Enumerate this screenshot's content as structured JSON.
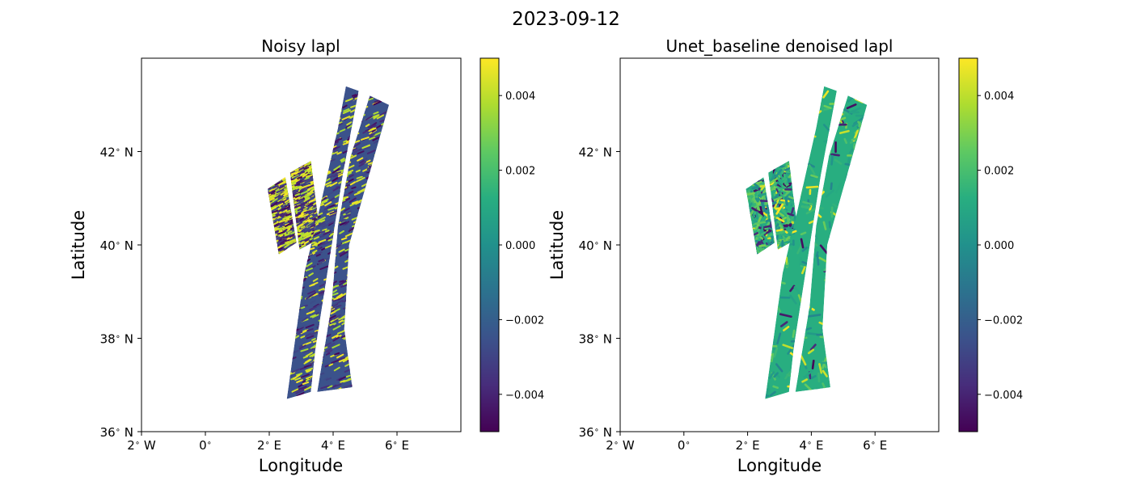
{
  "figure": {
    "suptitle": "2023-09-12"
  },
  "chart_data": [
    {
      "type": "heatmap",
      "title": "Noisy lapl",
      "xlabel": "Longitude",
      "ylabel": "Latitude",
      "xlim": [
        -2,
        8
      ],
      "ylim": [
        36,
        44
      ],
      "xticks": [
        {
          "value": -2,
          "label": "2$^\\circ$ W"
        },
        {
          "value": 0,
          "label": "0$^\\circ$"
        },
        {
          "value": 2,
          "label": "2$^\\circ$ E"
        },
        {
          "value": 4,
          "label": "4$^\\circ$ E"
        },
        {
          "value": 6,
          "label": "6$^\\circ$ E"
        }
      ],
      "yticks": [
        {
          "value": 36,
          "label": "36$^\\circ$ N"
        },
        {
          "value": 38,
          "label": "38$^\\circ$ N"
        },
        {
          "value": 40,
          "label": "40$^\\circ$ N"
        },
        {
          "value": 42,
          "label": "42$^\\circ$ N"
        }
      ],
      "colorbar": {
        "colormap": "viridis",
        "vmin": -0.005,
        "vmax": 0.005,
        "ticks": [
          {
            "value": 0.004,
            "label": "0.004"
          },
          {
            "value": 0.002,
            "label": "0.002"
          },
          {
            "value": 0.0,
            "label": "0.000"
          },
          {
            "value": -0.002,
            "label": "−0.002"
          },
          {
            "value": -0.004,
            "label": "−0.004"
          }
        ]
      },
      "swaths": [
        {
          "name": "",
          "corners": [
            [
              2.3,
              39.8
            ],
            [
              1.95,
              41.2
            ],
            [
              2.5,
              41.45
            ],
            [
              2.85,
              40.05
            ]
          ]
        },
        {
          "name": "",
          "corners": [
            [
              2.95,
              39.9
            ],
            [
              2.65,
              41.55
            ],
            [
              3.3,
              41.8
            ],
            [
              3.6,
              40.15
            ]
          ]
        },
        {
          "name": "",
          "corners": [
            [
              2.55,
              36.7
            ],
            [
              3.1,
              39.4
            ],
            [
              3.55,
              40.7
            ],
            [
              4.15,
              42.5
            ],
            [
              4.4,
              43.4
            ],
            [
              4.8,
              43.3
            ],
            [
              4.3,
              41.5
            ],
            [
              3.45,
              37.8
            ],
            [
              3.3,
              36.85
            ]
          ]
        },
        {
          "name": "",
          "corners": [
            [
              3.5,
              36.85
            ],
            [
              3.95,
              38.7
            ],
            [
              4.15,
              40.4
            ],
            [
              4.55,
              41.9
            ],
            [
              5.15,
              43.2
            ],
            [
              5.75,
              43.0
            ],
            [
              4.5,
              40.0
            ],
            [
              4.35,
              38.2
            ],
            [
              4.6,
              36.95
            ]
          ]
        }
      ],
      "noise_level": "high"
    },
    {
      "type": "heatmap",
      "title": "Unet_baseline denoised lapl",
      "xlabel": "Longitude",
      "ylabel": "Latitude",
      "xlim": [
        -2,
        8
      ],
      "ylim": [
        36,
        44
      ],
      "xticks": [
        {
          "value": -2,
          "label": "2$^\\circ$ W"
        },
        {
          "value": 0,
          "label": "0$^\\circ$"
        },
        {
          "value": 2,
          "label": "2$^\\circ$ E"
        },
        {
          "value": 4,
          "label": "4$^\\circ$ E"
        },
        {
          "value": 6,
          "label": "6$^\\circ$ E"
        }
      ],
      "yticks": [
        {
          "value": 36,
          "label": "36$^\\circ$ N"
        },
        {
          "value": 38,
          "label": "38$^\\circ$ N"
        },
        {
          "value": 40,
          "label": "40$^\\circ$ N"
        },
        {
          "value": 42,
          "label": "42$^\\circ$ N"
        }
      ],
      "colorbar": {
        "colormap": "viridis",
        "vmin": -0.005,
        "vmax": 0.005,
        "ticks": [
          {
            "value": 0.004,
            "label": "0.004"
          },
          {
            "value": 0.002,
            "label": "0.002"
          },
          {
            "value": 0.0,
            "label": "0.000"
          },
          {
            "value": -0.002,
            "label": "−0.002"
          },
          {
            "value": -0.004,
            "label": "−0.004"
          }
        ]
      },
      "swaths": [
        {
          "name": "",
          "corners": [
            [
              2.3,
              39.8
            ],
            [
              1.95,
              41.2
            ],
            [
              2.5,
              41.45
            ],
            [
              2.85,
              40.05
            ]
          ]
        },
        {
          "name": "",
          "corners": [
            [
              2.95,
              39.9
            ],
            [
              2.65,
              41.55
            ],
            [
              3.3,
              41.8
            ],
            [
              3.6,
              40.15
            ]
          ]
        },
        {
          "name": "",
          "corners": [
            [
              2.55,
              36.7
            ],
            [
              3.1,
              39.4
            ],
            [
              3.55,
              40.7
            ],
            [
              4.15,
              42.5
            ],
            [
              4.4,
              43.4
            ],
            [
              4.8,
              43.3
            ],
            [
              4.3,
              41.5
            ],
            [
              3.45,
              37.8
            ],
            [
              3.3,
              36.85
            ]
          ]
        },
        {
          "name": "",
          "corners": [
            [
              3.5,
              36.85
            ],
            [
              3.95,
              38.7
            ],
            [
              4.15,
              40.4
            ],
            [
              4.55,
              41.9
            ],
            [
              5.15,
              43.2
            ],
            [
              5.75,
              43.0
            ],
            [
              4.5,
              40.0
            ],
            [
              4.35,
              38.2
            ],
            [
              4.6,
              36.95
            ]
          ]
        }
      ],
      "noise_level": "low"
    }
  ]
}
